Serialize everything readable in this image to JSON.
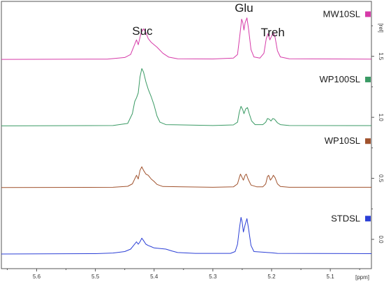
{
  "chart_data": {
    "type": "line",
    "title": "",
    "xlabel": "[ppm]",
    "ylabel": "[rel]",
    "x_reversed": true,
    "xlim": [
      5.03,
      5.66
    ],
    "ylim": [
      -0.24,
      1.95
    ],
    "x_ticks": [
      "5.6",
      "5.5",
      "5.4",
      "5.3",
      "5.2",
      "5.1"
    ],
    "y_ticks": [
      "0.0",
      "0.5",
      "1.0",
      "1.5"
    ],
    "peak_labels": [
      {
        "text": "Suc",
        "x": 5.42
      },
      {
        "text": "Glu",
        "x": 5.247
      },
      {
        "text": "Treh",
        "x": 5.198
      }
    ],
    "series": [
      {
        "name": "MW10SL",
        "color": "#d63aa8",
        "baseline": 1.475,
        "points": [
          [
            5.66,
            0
          ],
          [
            5.48,
            0.002
          ],
          [
            5.45,
            0.015
          ],
          [
            5.44,
            0.04
          ],
          [
            5.435,
            0.1
          ],
          [
            5.43,
            0.16
          ],
          [
            5.427,
            0.12
          ],
          [
            5.422,
            0.22
          ],
          [
            5.418,
            0.25
          ],
          [
            5.414,
            0.22
          ],
          [
            5.41,
            0.17
          ],
          [
            5.405,
            0.14
          ],
          [
            5.395,
            0.1
          ],
          [
            5.385,
            0.05
          ],
          [
            5.375,
            0.018
          ],
          [
            5.36,
            0.005
          ],
          [
            5.3,
            0.003
          ],
          [
            5.265,
            0.01
          ],
          [
            5.258,
            0.04
          ],
          [
            5.254,
            0.2
          ],
          [
            5.251,
            0.33
          ],
          [
            5.249,
            0.3
          ],
          [
            5.247,
            0.24
          ],
          [
            5.245,
            0.3
          ],
          [
            5.242,
            0.34
          ],
          [
            5.239,
            0.24
          ],
          [
            5.235,
            0.08
          ],
          [
            5.23,
            0.02
          ],
          [
            5.22,
            0.01
          ],
          [
            5.213,
            0.05
          ],
          [
            5.209,
            0.17
          ],
          [
            5.206,
            0.21
          ],
          [
            5.203,
            0.16
          ],
          [
            5.2,
            0.19
          ],
          [
            5.197,
            0.22
          ],
          [
            5.194,
            0.18
          ],
          [
            5.19,
            0.07
          ],
          [
            5.185,
            0.02
          ],
          [
            5.17,
            0.005
          ],
          [
            5.03,
            0.002
          ]
        ]
      },
      {
        "name": "WP100SL",
        "color": "#3a9a64",
        "baseline": 0.93,
        "points": [
          [
            5.66,
            0
          ],
          [
            5.47,
            0.003
          ],
          [
            5.445,
            0.02
          ],
          [
            5.437,
            0.1
          ],
          [
            5.433,
            0.2
          ],
          [
            5.43,
            0.23
          ],
          [
            5.427,
            0.27
          ],
          [
            5.424,
            0.4
          ],
          [
            5.421,
            0.47
          ],
          [
            5.418,
            0.44
          ],
          [
            5.414,
            0.36
          ],
          [
            5.41,
            0.3
          ],
          [
            5.405,
            0.24
          ],
          [
            5.4,
            0.17
          ],
          [
            5.395,
            0.08
          ],
          [
            5.39,
            0.03
          ],
          [
            5.38,
            0.01
          ],
          [
            5.3,
            0.003
          ],
          [
            5.265,
            0.008
          ],
          [
            5.258,
            0.03
          ],
          [
            5.255,
            0.11
          ],
          [
            5.252,
            0.16
          ],
          [
            5.249,
            0.13
          ],
          [
            5.247,
            0.1
          ],
          [
            5.244,
            0.14
          ],
          [
            5.241,
            0.15
          ],
          [
            5.238,
            0.1
          ],
          [
            5.234,
            0.04
          ],
          [
            5.228,
            0.01
          ],
          [
            5.215,
            0.01
          ],
          [
            5.21,
            0.03
          ],
          [
            5.207,
            0.06
          ],
          [
            5.204,
            0.055
          ],
          [
            5.201,
            0.04
          ],
          [
            5.198,
            0.06
          ],
          [
            5.195,
            0.055
          ],
          [
            5.19,
            0.025
          ],
          [
            5.185,
            0.01
          ],
          [
            5.17,
            0.003
          ],
          [
            5.03,
            0.002
          ]
        ]
      },
      {
        "name": "WP10SL",
        "color": "#a0522d",
        "baseline": 0.425,
        "points": [
          [
            5.66,
            0
          ],
          [
            5.47,
            0.002
          ],
          [
            5.445,
            0.01
          ],
          [
            5.437,
            0.03
          ],
          [
            5.432,
            0.08
          ],
          [
            5.43,
            0.1
          ],
          [
            5.427,
            0.07
          ],
          [
            5.424,
            0.14
          ],
          [
            5.421,
            0.17
          ],
          [
            5.418,
            0.14
          ],
          [
            5.414,
            0.11
          ],
          [
            5.41,
            0.1
          ],
          [
            5.405,
            0.07
          ],
          [
            5.4,
            0.05
          ],
          [
            5.395,
            0.025
          ],
          [
            5.385,
            0.008
          ],
          [
            5.3,
            0.002
          ],
          [
            5.265,
            0.005
          ],
          [
            5.258,
            0.03
          ],
          [
            5.255,
            0.08
          ],
          [
            5.253,
            0.11
          ],
          [
            5.25,
            0.08
          ],
          [
            5.248,
            0.06
          ],
          [
            5.245,
            0.1
          ],
          [
            5.243,
            0.11
          ],
          [
            5.24,
            0.07
          ],
          [
            5.235,
            0.02
          ],
          [
            5.225,
            0.005
          ],
          [
            5.215,
            0.005
          ],
          [
            5.21,
            0.03
          ],
          [
            5.207,
            0.09
          ],
          [
            5.205,
            0.1
          ],
          [
            5.202,
            0.06
          ],
          [
            5.199,
            0.08
          ],
          [
            5.197,
            0.1
          ],
          [
            5.194,
            0.08
          ],
          [
            5.19,
            0.03
          ],
          [
            5.185,
            0.008
          ],
          [
            5.17,
            0.002
          ],
          [
            5.03,
            0.002
          ]
        ]
      },
      {
        "name": "STDSL",
        "color": "#2b3fd6",
        "baseline": -0.12,
        "points": [
          [
            5.66,
            0
          ],
          [
            5.5,
            0.003
          ],
          [
            5.47,
            0.008
          ],
          [
            5.45,
            0.02
          ],
          [
            5.44,
            0.04
          ],
          [
            5.435,
            0.07
          ],
          [
            5.43,
            0.1
          ],
          [
            5.427,
            0.08
          ],
          [
            5.424,
            0.1
          ],
          [
            5.421,
            0.13
          ],
          [
            5.418,
            0.11
          ],
          [
            5.414,
            0.08
          ],
          [
            5.41,
            0.07
          ],
          [
            5.405,
            0.06
          ],
          [
            5.4,
            0.05
          ],
          [
            5.39,
            0.045
          ],
          [
            5.38,
            0.04
          ],
          [
            5.37,
            0.025
          ],
          [
            5.36,
            0.012
          ],
          [
            5.33,
            0.005
          ],
          [
            5.27,
            0.005
          ],
          [
            5.262,
            0.02
          ],
          [
            5.258,
            0.08
          ],
          [
            5.255,
            0.2
          ],
          [
            5.252,
            0.3
          ],
          [
            5.25,
            0.26
          ],
          [
            5.248,
            0.18
          ],
          [
            5.245,
            0.24
          ],
          [
            5.242,
            0.29
          ],
          [
            5.239,
            0.2
          ],
          [
            5.235,
            0.07
          ],
          [
            5.23,
            0.02
          ],
          [
            5.2,
            0.01
          ],
          [
            5.19,
            0.005
          ],
          [
            5.03,
            0.003
          ]
        ]
      }
    ]
  }
}
